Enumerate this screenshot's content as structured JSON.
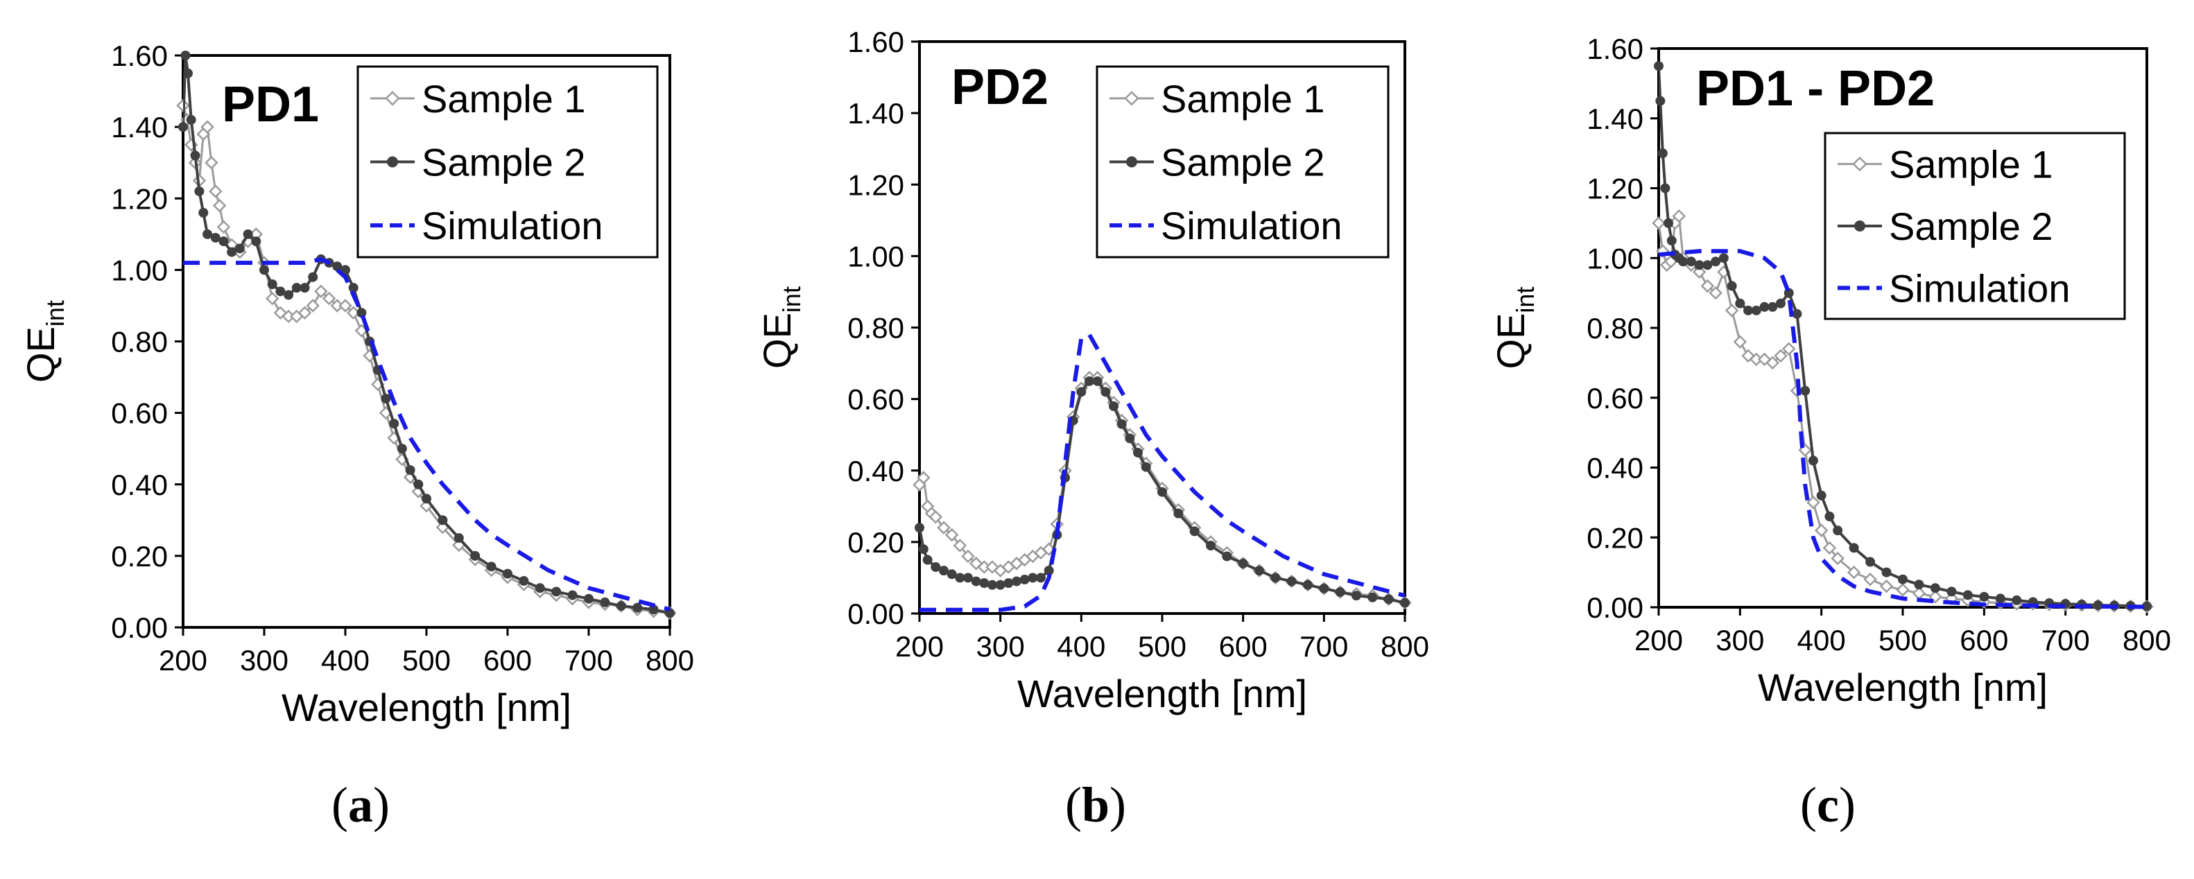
{
  "figure": {
    "panels": [
      {
        "label_open": "(",
        "label_letter": "a",
        "label_close": ")"
      },
      {
        "label_open": "(",
        "label_letter": "b",
        "label_close": ")"
      },
      {
        "label_open": "(",
        "label_letter": "c",
        "label_close": ")"
      }
    ]
  },
  "colors": {
    "sample1": "#9a9a9a",
    "sample2": "#404040",
    "simulation": "#1a1ae6",
    "axis": "#000000"
  },
  "chart_data": [
    {
      "type": "line",
      "title": "PD1",
      "xlabel": "Wavelength [nm]",
      "ylabel_main": "QE",
      "ylabel_sub": "int",
      "xlim": [
        200,
        800
      ],
      "ylim": [
        0,
        1.6
      ],
      "xticks": [
        "200",
        "300",
        "400",
        "500",
        "600",
        "700",
        "800"
      ],
      "yticks": [
        "0.00",
        "0.20",
        "0.40",
        "0.60",
        "0.80",
        "1.00",
        "1.20",
        "1.40",
        "1.60"
      ],
      "legend_position": "top-right",
      "series": [
        {
          "name": "Sample 1",
          "style": "open-diamond",
          "x": [
            200,
            205,
            210,
            215,
            220,
            225,
            230,
            235,
            240,
            245,
            250,
            260,
            270,
            280,
            290,
            300,
            310,
            320,
            330,
            340,
            350,
            360,
            370,
            380,
            390,
            400,
            410,
            420,
            430,
            440,
            450,
            460,
            470,
            480,
            490,
            500,
            520,
            540,
            560,
            580,
            600,
            620,
            640,
            660,
            680,
            700,
            720,
            740,
            760,
            780,
            800
          ],
          "y": [
            1.46,
            1.42,
            1.35,
            1.3,
            1.25,
            1.38,
            1.4,
            1.3,
            1.22,
            1.18,
            1.12,
            1.07,
            1.05,
            1.08,
            1.1,
            1.02,
            0.92,
            0.88,
            0.87,
            0.87,
            0.88,
            0.9,
            0.94,
            0.92,
            0.9,
            0.9,
            0.88,
            0.83,
            0.76,
            0.68,
            0.6,
            0.53,
            0.47,
            0.42,
            0.38,
            0.34,
            0.28,
            0.23,
            0.19,
            0.16,
            0.14,
            0.12,
            0.1,
            0.09,
            0.08,
            0.07,
            0.065,
            0.06,
            0.05,
            0.045,
            0.04
          ]
        },
        {
          "name": "Sample 2",
          "style": "filled-circle",
          "x": [
            200,
            203,
            206,
            210,
            215,
            220,
            225,
            230,
            240,
            250,
            260,
            270,
            280,
            290,
            300,
            310,
            320,
            330,
            340,
            350,
            360,
            370,
            380,
            390,
            400,
            410,
            420,
            430,
            440,
            450,
            460,
            470,
            480,
            490,
            500,
            520,
            540,
            560,
            580,
            600,
            620,
            640,
            660,
            680,
            700,
            720,
            740,
            760,
            780,
            800
          ],
          "y": [
            1.4,
            1.6,
            1.55,
            1.42,
            1.32,
            1.22,
            1.16,
            1.1,
            1.09,
            1.08,
            1.05,
            1.06,
            1.1,
            1.08,
            1.0,
            0.96,
            0.94,
            0.93,
            0.95,
            0.95,
            0.98,
            1.03,
            1.02,
            1.01,
            1.0,
            0.95,
            0.88,
            0.8,
            0.72,
            0.64,
            0.57,
            0.5,
            0.44,
            0.4,
            0.36,
            0.3,
            0.25,
            0.2,
            0.17,
            0.15,
            0.13,
            0.11,
            0.1,
            0.09,
            0.08,
            0.07,
            0.06,
            0.055,
            0.05,
            0.04
          ]
        },
        {
          "name": "Simulation",
          "style": "dashed",
          "x": [
            200,
            250,
            300,
            330,
            350,
            370,
            380,
            400,
            420,
            440,
            460,
            480,
            500,
            520,
            540,
            560,
            580,
            600,
            650,
            700,
            750,
            800
          ],
          "y": [
            1.02,
            1.02,
            1.02,
            1.02,
            1.02,
            1.03,
            1.02,
            0.98,
            0.88,
            0.75,
            0.63,
            0.53,
            0.46,
            0.4,
            0.35,
            0.3,
            0.26,
            0.23,
            0.16,
            0.11,
            0.08,
            0.05
          ]
        }
      ]
    },
    {
      "type": "line",
      "title": "PD2",
      "xlabel": "Wavelength [nm]",
      "ylabel_main": "QE",
      "ylabel_sub": "int",
      "xlim": [
        200,
        800
      ],
      "ylim": [
        0,
        1.6
      ],
      "xticks": [
        "200",
        "300",
        "400",
        "500",
        "600",
        "700",
        "800"
      ],
      "yticks": [
        "0.00",
        "0.20",
        "0.40",
        "0.60",
        "0.80",
        "1.00",
        "1.20",
        "1.40",
        "1.60"
      ],
      "legend_position": "top-right",
      "series": [
        {
          "name": "Sample 1",
          "style": "open-diamond",
          "x": [
            200,
            205,
            210,
            215,
            220,
            230,
            240,
            250,
            260,
            270,
            280,
            290,
            300,
            310,
            320,
            330,
            340,
            350,
            360,
            370,
            380,
            390,
            400,
            410,
            420,
            430,
            440,
            450,
            460,
            470,
            480,
            500,
            520,
            540,
            560,
            580,
            600,
            620,
            640,
            660,
            680,
            700,
            720,
            740,
            760,
            780,
            800
          ],
          "y": [
            0.36,
            0.38,
            0.3,
            0.28,
            0.27,
            0.24,
            0.22,
            0.19,
            0.16,
            0.14,
            0.13,
            0.13,
            0.12,
            0.13,
            0.14,
            0.15,
            0.16,
            0.17,
            0.18,
            0.25,
            0.4,
            0.55,
            0.63,
            0.66,
            0.66,
            0.63,
            0.59,
            0.54,
            0.5,
            0.46,
            0.42,
            0.35,
            0.29,
            0.24,
            0.2,
            0.17,
            0.14,
            0.12,
            0.1,
            0.09,
            0.08,
            0.07,
            0.06,
            0.055,
            0.05,
            0.04,
            0.03
          ]
        },
        {
          "name": "Sample 2",
          "style": "filled-circle",
          "x": [
            200,
            205,
            210,
            220,
            230,
            240,
            250,
            260,
            270,
            280,
            290,
            300,
            310,
            320,
            330,
            340,
            350,
            360,
            370,
            380,
            390,
            400,
            410,
            420,
            430,
            440,
            450,
            460,
            470,
            480,
            500,
            520,
            540,
            560,
            580,
            600,
            620,
            640,
            660,
            680,
            700,
            720,
            740,
            760,
            780,
            800
          ],
          "y": [
            0.24,
            0.18,
            0.15,
            0.13,
            0.12,
            0.11,
            0.1,
            0.1,
            0.09,
            0.085,
            0.08,
            0.08,
            0.085,
            0.09,
            0.095,
            0.1,
            0.1,
            0.12,
            0.22,
            0.38,
            0.54,
            0.62,
            0.65,
            0.65,
            0.62,
            0.58,
            0.53,
            0.49,
            0.45,
            0.41,
            0.34,
            0.28,
            0.23,
            0.19,
            0.16,
            0.14,
            0.12,
            0.1,
            0.09,
            0.08,
            0.07,
            0.06,
            0.05,
            0.045,
            0.04,
            0.03
          ]
        },
        {
          "name": "Simulation",
          "style": "dashed",
          "x": [
            200,
            250,
            300,
            330,
            350,
            360,
            370,
            380,
            390,
            400,
            410,
            420,
            440,
            460,
            480,
            500,
            520,
            540,
            560,
            580,
            600,
            650,
            700,
            750,
            800
          ],
          "y": [
            0.01,
            0.01,
            0.01,
            0.02,
            0.05,
            0.1,
            0.22,
            0.42,
            0.62,
            0.77,
            0.78,
            0.74,
            0.66,
            0.58,
            0.5,
            0.44,
            0.39,
            0.34,
            0.3,
            0.26,
            0.23,
            0.16,
            0.11,
            0.08,
            0.05
          ]
        }
      ]
    },
    {
      "type": "line",
      "title": "PD1 - PD2",
      "xlabel": "Wavelength [nm]",
      "ylabel_main": "QE",
      "ylabel_sub": "int",
      "xlim": [
        200,
        800
      ],
      "ylim": [
        0,
        1.6
      ],
      "xticks": [
        "200",
        "300",
        "400",
        "500",
        "600",
        "700",
        "800"
      ],
      "yticks": [
        "0.00",
        "0.20",
        "0.40",
        "0.60",
        "0.80",
        "1.00",
        "1.20",
        "1.40",
        "1.60"
      ],
      "legend_position": "top-right",
      "series": [
        {
          "name": "Sample 1",
          "style": "open-diamond",
          "x": [
            200,
            205,
            210,
            215,
            220,
            225,
            230,
            240,
            250,
            260,
            270,
            280,
            290,
            300,
            310,
            320,
            330,
            340,
            350,
            360,
            370,
            380,
            390,
            400,
            410,
            420,
            440,
            460,
            480,
            500,
            520,
            540,
            560,
            580,
            600,
            620,
            640,
            660,
            680,
            700,
            720,
            740,
            760,
            780,
            800
          ],
          "y": [
            1.1,
            1.02,
            0.98,
            0.99,
            1.1,
            1.12,
            1.0,
            0.98,
            0.96,
            0.92,
            0.9,
            0.96,
            0.85,
            0.76,
            0.72,
            0.71,
            0.71,
            0.7,
            0.72,
            0.74,
            0.62,
            0.45,
            0.3,
            0.22,
            0.17,
            0.14,
            0.1,
            0.08,
            0.06,
            0.05,
            0.04,
            0.03,
            0.025,
            0.02,
            0.015,
            0.012,
            0.01,
            0.01,
            0.008,
            0.007,
            0.006,
            0.005,
            0.004,
            0.003,
            0.002
          ]
        },
        {
          "name": "Sample 2",
          "style": "filled-circle",
          "x": [
            200,
            202,
            205,
            208,
            212,
            216,
            220,
            225,
            230,
            240,
            250,
            260,
            270,
            280,
            290,
            300,
            310,
            320,
            330,
            340,
            350,
            360,
            370,
            380,
            390,
            400,
            410,
            420,
            440,
            460,
            480,
            500,
            520,
            540,
            560,
            580,
            600,
            620,
            640,
            660,
            680,
            700,
            720,
            740,
            760,
            780,
            800
          ],
          "y": [
            1.55,
            1.45,
            1.3,
            1.2,
            1.1,
            1.05,
            1.01,
            1.0,
            0.99,
            0.99,
            0.98,
            0.98,
            0.99,
            1.0,
            0.92,
            0.87,
            0.85,
            0.85,
            0.86,
            0.86,
            0.87,
            0.9,
            0.84,
            0.62,
            0.42,
            0.32,
            0.26,
            0.22,
            0.17,
            0.13,
            0.1,
            0.08,
            0.065,
            0.055,
            0.045,
            0.035,
            0.03,
            0.025,
            0.02,
            0.015,
            0.012,
            0.01,
            0.008,
            0.006,
            0.005,
            0.004,
            0.003
          ]
        },
        {
          "name": "Simulation",
          "style": "dashed",
          "x": [
            200,
            250,
            300,
            330,
            350,
            360,
            370,
            375,
            380,
            390,
            400,
            420,
            440,
            460,
            480,
            500,
            550,
            600,
            650,
            700,
            750,
            800
          ],
          "y": [
            1.01,
            1.02,
            1.02,
            1.0,
            0.96,
            0.9,
            0.7,
            0.5,
            0.35,
            0.2,
            0.14,
            0.09,
            0.06,
            0.045,
            0.035,
            0.025,
            0.015,
            0.008,
            0.005,
            0.003,
            0.002,
            0.001
          ]
        }
      ]
    }
  ]
}
